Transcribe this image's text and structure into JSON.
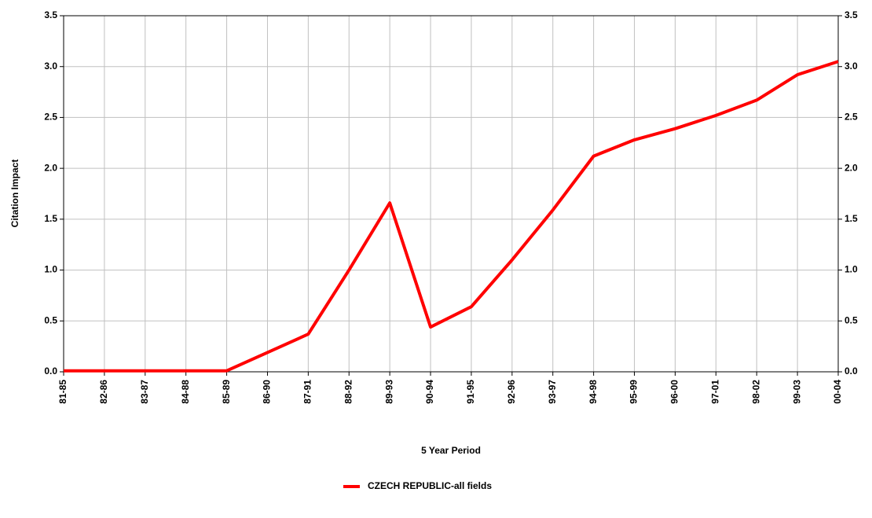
{
  "chart_data": {
    "type": "line",
    "categories": [
      "81-85",
      "82-86",
      "83-87",
      "84-88",
      "85-89",
      "86-90",
      "87-91",
      "88-92",
      "89-93",
      "90-94",
      "91-95",
      "92-96",
      "93-97",
      "94-98",
      "95-99",
      "96-00",
      "97-01",
      "98-02",
      "99-03",
      "00-04"
    ],
    "series": [
      {
        "name": "CZECH REPUBLIC-all fields",
        "color": "#ff0000",
        "values": [
          0.01,
          0.01,
          0.01,
          0.01,
          0.01,
          0.19,
          0.37,
          1.0,
          1.66,
          0.44,
          0.64,
          1.1,
          1.59,
          2.12,
          2.28,
          2.39,
          2.52,
          2.67,
          2.92,
          3.05
        ]
      }
    ],
    "ylabel": "Citation Impact",
    "xlabel": "5 Year Period",
    "ylim": [
      0,
      3.5
    ],
    "yticks": [
      {
        "value": 0,
        "label": "0.0"
      },
      {
        "value": 0.5,
        "label": "0.5"
      },
      {
        "value": 1,
        "label": "1.0"
      },
      {
        "value": 1.5,
        "label": "1.5"
      },
      {
        "value": 2,
        "label": "2.0"
      },
      {
        "value": 2.5,
        "label": "2.5"
      },
      {
        "value": 3,
        "label": "3.0"
      },
      {
        "value": 3.5,
        "label": "3.5"
      }
    ],
    "y2lim": [
      0,
      3.5
    ],
    "y2ticks": [
      {
        "value": 0,
        "label": "0.0"
      },
      {
        "value": 0.5,
        "label": "0.5"
      },
      {
        "value": 1,
        "label": "1.0"
      },
      {
        "value": 1.5,
        "label": "1.5"
      },
      {
        "value": 2,
        "label": "2.0"
      },
      {
        "value": 2.5,
        "label": "2.5"
      },
      {
        "value": 3,
        "label": "3.0"
      },
      {
        "value": 3.5,
        "label": "3.5"
      }
    ],
    "grid": true,
    "legend": "bottom"
  }
}
